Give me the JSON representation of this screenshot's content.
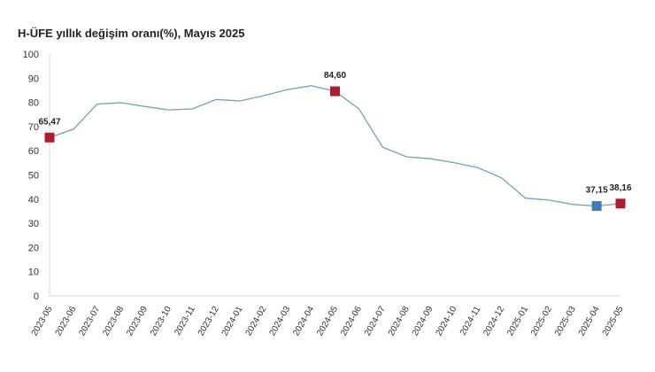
{
  "chart_data": {
    "type": "line",
    "title": "H-ÜFE yıllık değişim oranı(%), Mayıs 2025",
    "xlabel": "",
    "ylabel": "",
    "ylim": [
      0,
      100
    ],
    "yticks": [
      0,
      10,
      20,
      30,
      40,
      50,
      60,
      70,
      80,
      90,
      100
    ],
    "grid": false,
    "categories": [
      "2023-05",
      "2023-06",
      "2023-07",
      "2023-08",
      "2023-09",
      "2023-10",
      "2023-11",
      "2023-12",
      "2024-01",
      "2024-02",
      "2024-03",
      "2024-04",
      "2024-05",
      "2024-06",
      "2024-07",
      "2024-08",
      "2024-09",
      "2024-10",
      "2024-11",
      "2024-12",
      "2025-01",
      "2025-02",
      "2025-03",
      "2025-04",
      "2025-05"
    ],
    "series": [
      {
        "values": [
          65.47,
          68.9,
          79.3,
          79.9,
          78.3,
          76.9,
          77.3,
          81.2,
          80.6,
          82.8,
          85.3,
          86.9,
          84.6,
          77.4,
          61.5,
          57.5,
          56.7,
          55.1,
          53.0,
          48.8,
          40.4,
          39.6,
          37.8,
          37.15,
          38.16
        ],
        "color": "#6fa3b5"
      }
    ],
    "markers": [
      {
        "category": "2023-05",
        "value": 65.47,
        "label": "65,47",
        "color": "#b01c2e"
      },
      {
        "category": "2024-05",
        "value": 84.6,
        "label": "84,60",
        "color": "#b01c2e"
      },
      {
        "category": "2025-04",
        "value": 37.15,
        "label": "37,15",
        "color": "#3a7dbf"
      },
      {
        "category": "2025-05",
        "value": 38.16,
        "label": "38,16",
        "color": "#b01c2e"
      }
    ]
  }
}
